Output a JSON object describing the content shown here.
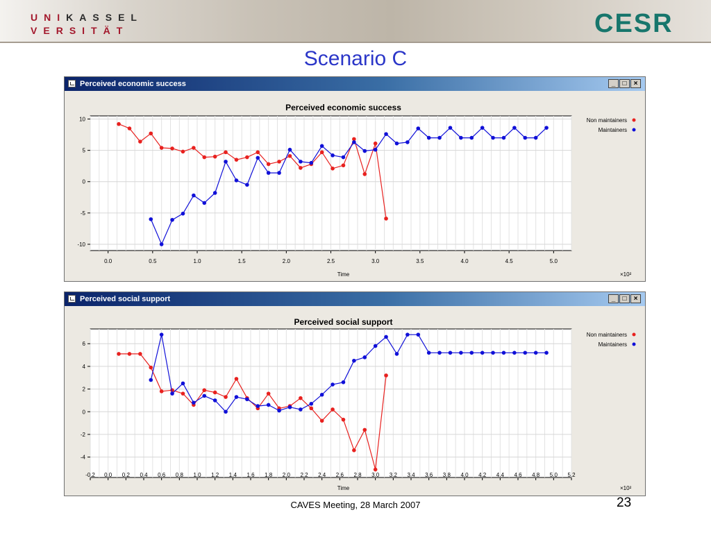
{
  "header": {
    "uni_line1": [
      "U",
      "N",
      "I",
      "K",
      "A",
      "S",
      "S",
      "E",
      "L"
    ],
    "uni_line2": [
      "V",
      "E",
      "R",
      "S",
      "I",
      "T",
      "Ä",
      "T"
    ],
    "uni_colors": {
      "red": "#a3182c",
      "dark": "#2a2a2a"
    },
    "cesr_logo": "CESR",
    "cesr_color": "#17766c"
  },
  "slide_title": "Scenario C",
  "footer": "CAVES Meeting, 28 March 2007",
  "page_number": "23",
  "windows": [
    {
      "title": "Perceived economic success",
      "min_btn": "_",
      "max_btn": "□",
      "close_btn": "×"
    },
    {
      "title": "Perceived social support",
      "min_btn": "_",
      "max_btn": "□",
      "close_btn": "×"
    }
  ],
  "chart_data": [
    {
      "type": "line",
      "title": "Perceived economic success",
      "xlabel": "Time",
      "x_multiplier": "×10²",
      "ylabel": "",
      "xlim": [
        -0.2,
        5.2
      ],
      "ylim": [
        -11,
        10.5
      ],
      "xticks": [
        0.0,
        0.5,
        1.0,
        1.5,
        2.0,
        2.5,
        3.0,
        3.5,
        4.0,
        4.5,
        5.0
      ],
      "xtick_labels": [
        "0.0",
        "0.5",
        "1.0",
        "1.5",
        "2.0",
        "2.5",
        "3.0",
        "3.5",
        "4.0",
        "4.5",
        "5.0"
      ],
      "yticks": [
        10,
        5,
        0,
        -5,
        -10
      ],
      "ytick_labels": [
        "10",
        "5",
        "0",
        "-5",
        "-10"
      ],
      "grid": true,
      "legend_position": "top-right",
      "series": [
        {
          "name": "Non maintainers",
          "color": "#e8211f",
          "points": [
            [
              0.12,
              9.2
            ],
            [
              0.24,
              8.5
            ],
            [
              0.36,
              6.4
            ],
            [
              0.48,
              7.7
            ],
            [
              0.6,
              5.4
            ],
            [
              0.72,
              5.3
            ],
            [
              0.84,
              4.8
            ],
            [
              0.96,
              5.4
            ],
            [
              1.08,
              3.9
            ],
            [
              1.2,
              4.0
            ],
            [
              1.32,
              4.7
            ],
            [
              1.44,
              3.5
            ],
            [
              1.56,
              3.9
            ],
            [
              1.68,
              4.7
            ],
            [
              1.8,
              2.8
            ],
            [
              1.92,
              3.2
            ],
            [
              2.04,
              4.1
            ],
            [
              2.16,
              2.2
            ],
            [
              2.28,
              2.8
            ],
            [
              2.4,
              4.7
            ],
            [
              2.52,
              2.1
            ],
            [
              2.64,
              2.6
            ],
            [
              2.76,
              6.8
            ],
            [
              2.88,
              1.2
            ],
            [
              3.0,
              6.1
            ],
            [
              3.12,
              -5.9
            ]
          ]
        },
        {
          "name": "Maintainers",
          "color": "#1010d8",
          "points": [
            [
              0.48,
              -6.0
            ],
            [
              0.6,
              -10.0
            ],
            [
              0.72,
              -6.1
            ],
            [
              0.84,
              -5.1
            ],
            [
              0.96,
              -2.2
            ],
            [
              1.08,
              -3.4
            ],
            [
              1.2,
              -1.8
            ],
            [
              1.32,
              3.2
            ],
            [
              1.44,
              0.2
            ],
            [
              1.56,
              -0.5
            ],
            [
              1.68,
              3.8
            ],
            [
              1.8,
              1.4
            ],
            [
              1.92,
              1.4
            ],
            [
              2.04,
              5.1
            ],
            [
              2.16,
              3.2
            ],
            [
              2.28,
              3.0
            ],
            [
              2.4,
              5.7
            ],
            [
              2.52,
              4.2
            ],
            [
              2.64,
              3.9
            ],
            [
              2.76,
              6.3
            ],
            [
              2.88,
              4.9
            ],
            [
              3.0,
              5.1
            ],
            [
              3.12,
              7.6
            ],
            [
              3.24,
              6.1
            ],
            [
              3.36,
              6.3
            ],
            [
              3.48,
              8.5
            ],
            [
              3.6,
              7.0
            ],
            [
              3.72,
              7.0
            ],
            [
              3.84,
              8.6
            ],
            [
              3.96,
              7.0
            ],
            [
              4.08,
              7.0
            ],
            [
              4.2,
              8.6
            ],
            [
              4.32,
              7.0
            ],
            [
              4.44,
              7.0
            ],
            [
              4.56,
              8.6
            ],
            [
              4.68,
              7.0
            ],
            [
              4.8,
              7.0
            ],
            [
              4.92,
              8.6
            ]
          ]
        }
      ]
    },
    {
      "type": "line",
      "title": "Perceived social support",
      "xlabel": "Time",
      "x_multiplier": "×10²",
      "ylabel": "",
      "xlim": [
        -0.2,
        5.2
      ],
      "ylim": [
        -5.8,
        7.3
      ],
      "xticks": [
        -0.2,
        0.0,
        0.2,
        0.4,
        0.6,
        0.8,
        1.0,
        1.2,
        1.4,
        1.6,
        1.8,
        2.0,
        2.2,
        2.4,
        2.6,
        2.8,
        3.0,
        3.2,
        3.4,
        3.6,
        3.8,
        4.0,
        4.2,
        4.4,
        4.6,
        4.8,
        5.0,
        5.2
      ],
      "xtick_labels": [
        "-0.2",
        "0.0",
        "0.2",
        "0.4",
        "0.6",
        "0.8",
        "1.0",
        "1.2",
        "1.4",
        "1.6",
        "1.8",
        "2.0",
        "2.2",
        "2.4",
        "2.6",
        "2.8",
        "3.0",
        "3.2",
        "3.4",
        "3.6",
        "3.8",
        "4.0",
        "4.2",
        "4.4",
        "4.6",
        "4.8",
        "5.0",
        "5.2"
      ],
      "yticks": [
        6,
        4,
        2,
        0,
        -2,
        -4
      ],
      "ytick_labels": [
        "6",
        "4",
        "2",
        "0",
        "-2",
        "-4"
      ],
      "grid": true,
      "legend_position": "top-right",
      "series": [
        {
          "name": "Non maintainers",
          "color": "#e8211f",
          "points": [
            [
              0.12,
              5.1
            ],
            [
              0.24,
              5.1
            ],
            [
              0.36,
              5.1
            ],
            [
              0.48,
              3.9
            ],
            [
              0.6,
              1.8
            ],
            [
              0.72,
              1.9
            ],
            [
              0.84,
              1.6
            ],
            [
              0.96,
              0.6
            ],
            [
              1.08,
              1.9
            ],
            [
              1.2,
              1.7
            ],
            [
              1.32,
              1.3
            ],
            [
              1.44,
              2.9
            ],
            [
              1.56,
              1.2
            ],
            [
              1.68,
              0.3
            ],
            [
              1.8,
              1.6
            ],
            [
              1.92,
              0.3
            ],
            [
              2.04,
              0.5
            ],
            [
              2.16,
              1.2
            ],
            [
              2.28,
              0.3
            ],
            [
              2.4,
              -0.8
            ],
            [
              2.52,
              0.2
            ],
            [
              2.64,
              -0.7
            ],
            [
              2.76,
              -3.4
            ],
            [
              2.88,
              -1.6
            ],
            [
              3.0,
              -5.1
            ],
            [
              3.12,
              3.2
            ]
          ]
        },
        {
          "name": "Maintainers",
          "color": "#1010d8",
          "points": [
            [
              0.48,
              2.8
            ],
            [
              0.6,
              6.8
            ],
            [
              0.72,
              1.6
            ],
            [
              0.84,
              2.5
            ],
            [
              0.96,
              0.8
            ],
            [
              1.08,
              1.4
            ],
            [
              1.2,
              1.0
            ],
            [
              1.32,
              0.0
            ],
            [
              1.44,
              1.3
            ],
            [
              1.56,
              1.1
            ],
            [
              1.68,
              0.5
            ],
            [
              1.8,
              0.6
            ],
            [
              1.92,
              0.1
            ],
            [
              2.04,
              0.4
            ],
            [
              2.16,
              0.2
            ],
            [
              2.28,
              0.7
            ],
            [
              2.4,
              1.5
            ],
            [
              2.52,
              2.4
            ],
            [
              2.64,
              2.6
            ],
            [
              2.76,
              4.5
            ],
            [
              2.88,
              4.8
            ],
            [
              3.0,
              5.8
            ],
            [
              3.12,
              6.6
            ],
            [
              3.24,
              5.1
            ],
            [
              3.36,
              6.8
            ],
            [
              3.48,
              6.8
            ],
            [
              3.6,
              5.2
            ],
            [
              3.72,
              5.2
            ],
            [
              3.84,
              5.2
            ],
            [
              3.96,
              5.2
            ],
            [
              4.08,
              5.2
            ],
            [
              4.2,
              5.2
            ],
            [
              4.32,
              5.2
            ],
            [
              4.44,
              5.2
            ],
            [
              4.56,
              5.2
            ],
            [
              4.68,
              5.2
            ],
            [
              4.8,
              5.2
            ],
            [
              4.92,
              5.2
            ]
          ]
        }
      ]
    }
  ]
}
